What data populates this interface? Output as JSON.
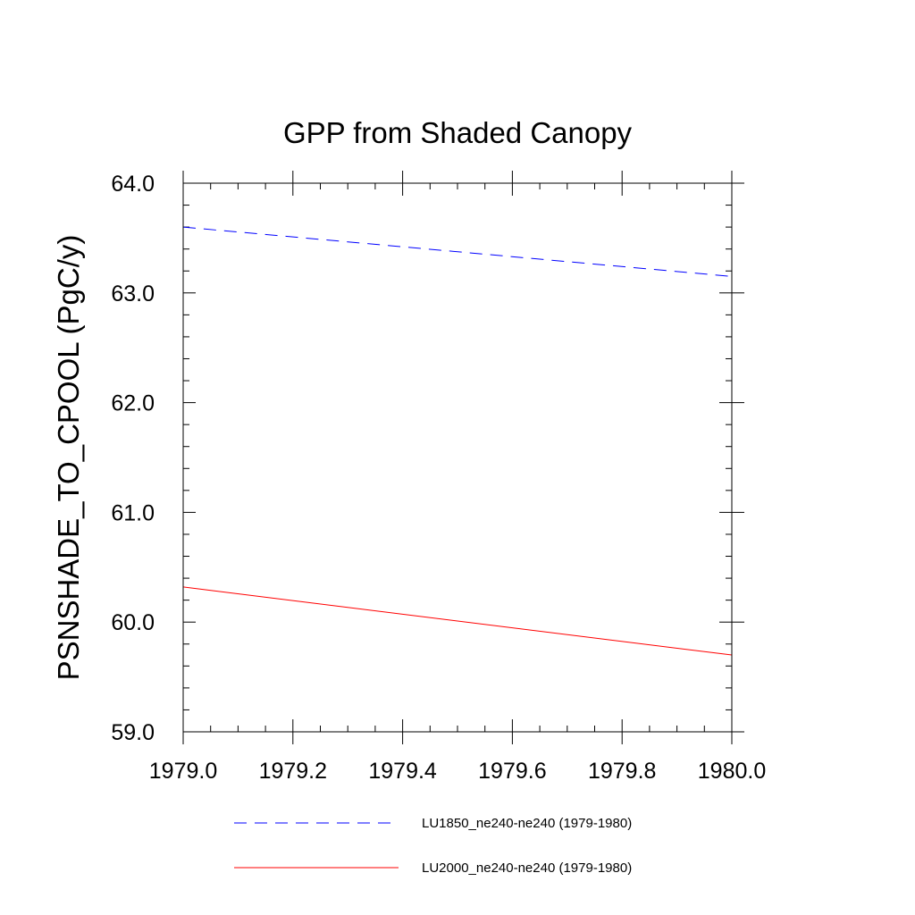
{
  "chart_data": {
    "type": "line",
    "title": "GPP from Shaded Canopy",
    "xlabel": "",
    "ylabel": "PSNSHADE_TO_CPOOL  (PgC/y)",
    "xlim": [
      1979.0,
      1980.0
    ],
    "ylim": [
      59.0,
      64.0
    ],
    "x_ticks": [
      "1979.0",
      "1979.2",
      "1979.4",
      "1979.6",
      "1979.8",
      "1980.0"
    ],
    "y_ticks": [
      "59.0",
      "60.0",
      "61.0",
      "62.0",
      "63.0",
      "64.0"
    ],
    "grid": false,
    "legend_position": "bottom",
    "series": [
      {
        "name": "LU1850_ne240-ne240 (1979-1980)",
        "color": "#0000ff",
        "dash": "dashed",
        "x": [
          1979.0,
          1980.0
        ],
        "y": [
          63.6,
          63.15
        ]
      },
      {
        "name": "LU2000_ne240-ne240 (1979-1980)",
        "color": "#ff0000",
        "dash": "solid",
        "x": [
          1979.0,
          1980.0
        ],
        "y": [
          60.32,
          59.7
        ]
      }
    ]
  }
}
